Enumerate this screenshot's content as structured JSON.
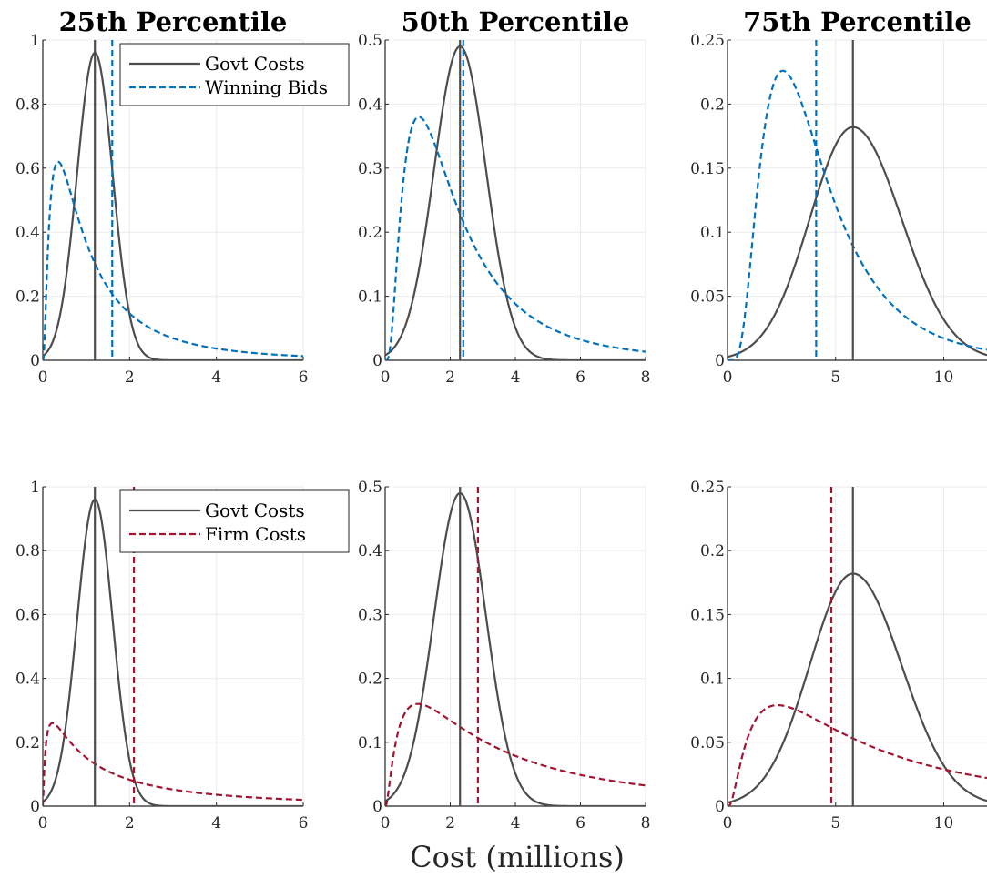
{
  "colors": {
    "govt": "#4d4d4d",
    "winning_bids": "#0072bd",
    "firm_costs": "#a2142f",
    "grid": "#ebebeb",
    "axis": "#262626"
  },
  "xlabel": "Cost (millions)",
  "chart_data": [
    {
      "type": "line",
      "title": "25th Percentile",
      "xlim": [
        0,
        6
      ],
      "ylim": [
        0,
        1
      ],
      "xticks": [
        "0",
        "2",
        "4",
        "6"
      ],
      "yticks": [
        "0",
        "0.2",
        "0.4",
        "0.6",
        "0.8",
        "1"
      ],
      "legend": "top-right",
      "series": [
        {
          "name": "Govt Costs",
          "style": "solid",
          "color": "#4d4d4d",
          "dist": "normal",
          "mean": 1.2,
          "sd": 0.41,
          "peak": 0.96
        },
        {
          "name": "Winning Bids",
          "style": "dashed",
          "color": "#0072bd",
          "dist": "lognormal",
          "mu": 0.0,
          "sigma": 1.02,
          "peak": 0.62
        }
      ],
      "vlines": [
        {
          "x": 1.2,
          "style": "solid",
          "color": "#4d4d4d"
        },
        {
          "x": 1.6,
          "style": "dashed",
          "color": "#0072bd"
        }
      ]
    },
    {
      "type": "line",
      "title": "50th Percentile",
      "xlim": [
        0,
        8
      ],
      "ylim": [
        0,
        0.5
      ],
      "xticks": [
        "0",
        "2",
        "4",
        "6",
        "8"
      ],
      "yticks": [
        "0",
        "0.1",
        "0.2",
        "0.3",
        "0.4",
        "0.5"
      ],
      "series": [
        {
          "dist": "normal",
          "style": "solid",
          "color": "#4d4d4d",
          "mean": 2.3,
          "sd": 0.8,
          "peak": 0.49
        },
        {
          "dist": "lognormal",
          "style": "dashed",
          "color": "#0072bd",
          "mu": 0.66,
          "sigma": 0.79,
          "peak": 0.38
        }
      ],
      "vlines": [
        {
          "x": 2.3,
          "style": "solid",
          "color": "#4d4d4d"
        },
        {
          "x": 2.4,
          "style": "dashed",
          "color": "#0072bd"
        }
      ]
    },
    {
      "type": "line",
      "title": "75th Percentile",
      "xlim": [
        0,
        12
      ],
      "ylim": [
        0,
        0.25
      ],
      "xticks": [
        "0",
        "5",
        "10"
      ],
      "yticks": [
        "0",
        "0.05",
        "0.1",
        "0.15",
        "0.2",
        "0.25"
      ],
      "series": [
        {
          "dist": "skewnormal",
          "style": "solid",
          "color": "#4d4d4d",
          "mode": 5.8,
          "sdl": 2.0,
          "sdr": 2.25,
          "peak": 0.182
        },
        {
          "dist": "lognormal",
          "style": "dashed",
          "color": "#0072bd",
          "mu": 1.3,
          "sigma": 0.6,
          "peak": 0.226
        }
      ],
      "vlines": [
        {
          "x": 5.8,
          "style": "solid",
          "color": "#4d4d4d"
        },
        {
          "x": 4.1,
          "style": "dashed",
          "color": "#0072bd"
        }
      ]
    },
    {
      "type": "line",
      "title": "",
      "xlim": [
        0,
        6
      ],
      "ylim": [
        0,
        1
      ],
      "xticks": [
        "0",
        "2",
        "4",
        "6"
      ],
      "yticks": [
        "0",
        "0.2",
        "0.4",
        "0.6",
        "0.8",
        "1"
      ],
      "legend": "top-right",
      "series": [
        {
          "name": "Govt Costs",
          "style": "solid",
          "color": "#4d4d4d",
          "dist": "normal",
          "mean": 1.2,
          "sd": 0.41,
          "peak": 0.96
        },
        {
          "name": "Firm Costs",
          "style": "dashed",
          "color": "#a2142f",
          "dist": "lognormal",
          "mu": 0.6,
          "sigma": 1.45,
          "peak": 0.26
        }
      ],
      "vlines": [
        {
          "x": 1.2,
          "style": "solid",
          "color": "#4d4d4d"
        },
        {
          "x": 2.1,
          "style": "dashed",
          "color": "#a2142f"
        }
      ]
    },
    {
      "type": "line",
      "title": "",
      "xlim": [
        0,
        8
      ],
      "ylim": [
        0,
        0.5
      ],
      "xticks": [
        "0",
        "2",
        "4",
        "6",
        "8"
      ],
      "yticks": [
        "0",
        "0.1",
        "0.2",
        "0.3",
        "0.4",
        "0.5"
      ],
      "series": [
        {
          "dist": "normal",
          "style": "solid",
          "color": "#4d4d4d",
          "mean": 2.3,
          "sd": 0.8,
          "peak": 0.49
        },
        {
          "dist": "lognormal",
          "style": "dashed",
          "color": "#a2142f",
          "mu": 1.35,
          "sigma": 1.16,
          "peak": 0.16
        }
      ],
      "vlines": [
        {
          "x": 2.3,
          "style": "solid",
          "color": "#4d4d4d"
        },
        {
          "x": 2.85,
          "style": "dashed",
          "color": "#a2142f"
        }
      ]
    },
    {
      "type": "line",
      "title": "",
      "xlim": [
        0,
        12
      ],
      "ylim": [
        0,
        0.25
      ],
      "xticks": [
        "0",
        "5",
        "10"
      ],
      "yticks": [
        "0",
        "0.05",
        "0.1",
        "0.15",
        "0.2",
        "0.25"
      ],
      "series": [
        {
          "dist": "skewnormal",
          "style": "solid",
          "color": "#4d4d4d",
          "mode": 5.8,
          "sdl": 2.0,
          "sdr": 2.25,
          "peak": 0.182
        },
        {
          "dist": "lognormal",
          "style": "dashed",
          "color": "#a2142f",
          "mu": 1.9,
          "sigma": 1.03,
          "peak": 0.079
        }
      ],
      "vlines": [
        {
          "x": 5.8,
          "style": "solid",
          "color": "#4d4d4d"
        },
        {
          "x": 4.8,
          "style": "dashed",
          "color": "#a2142f"
        }
      ]
    }
  ]
}
